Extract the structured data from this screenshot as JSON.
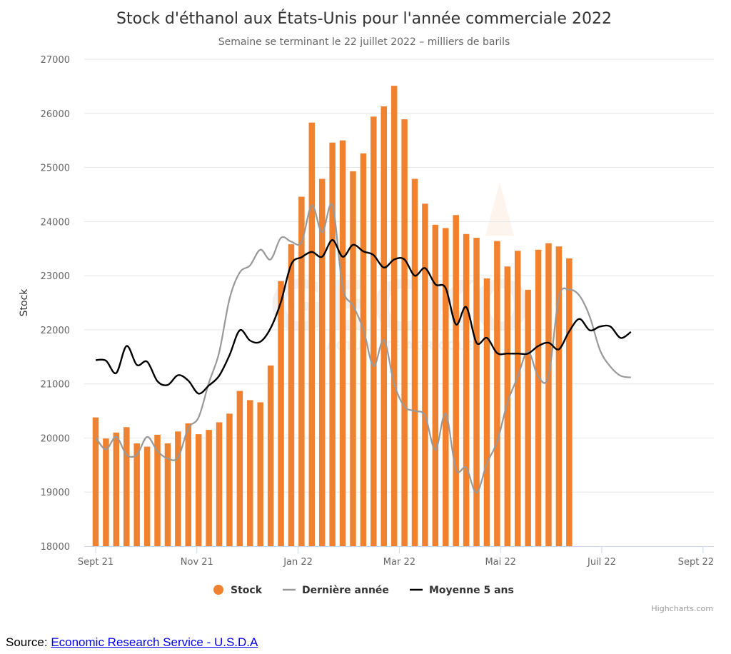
{
  "chart_data": {
    "type": "bar",
    "title": "Stock d'éthanol aux États-Unis pour l'année commerciale 2022",
    "subtitle": "Semaine se terminant le 22 juillet 2022 – milliers de barils",
    "ylabel": "Stock",
    "ylim": [
      18000,
      27000
    ],
    "yticks": [
      18000,
      19000,
      20000,
      21000,
      22000,
      23000,
      24000,
      25000,
      26000,
      27000
    ],
    "xticks": [
      "Sept 21",
      "Nov 21",
      "Jan 22",
      "Mar 22",
      "Mai 22",
      "Juil 22",
      "Sept 22"
    ],
    "weeks": 60,
    "grid": true,
    "legend_position": "bottom",
    "series": [
      {
        "name": "Stock",
        "type": "bar",
        "color": "#f0812f",
        "values": [
          20380,
          19990,
          20100,
          20200,
          19900,
          19840,
          20060,
          19900,
          20120,
          20270,
          20070,
          20150,
          20290,
          20450,
          20870,
          20700,
          20660,
          21340,
          22900,
          23580,
          24460,
          25830,
          24790,
          25460,
          25500,
          24930,
          25260,
          25940,
          26130,
          26510,
          25890,
          24790,
          24330,
          23940,
          23880,
          24120,
          23770,
          23700,
          22950,
          23640,
          23170,
          23460,
          22740,
          23480,
          23600,
          23540,
          23320
        ]
      },
      {
        "name": "Dernière année",
        "type": "line",
        "color": "#999999",
        "values": [
          20010,
          19790,
          20020,
          19690,
          19690,
          20020,
          19760,
          19620,
          19640,
          20180,
          20380,
          21020,
          21580,
          22570,
          23060,
          23190,
          23480,
          23300,
          23700,
          23630,
          23620,
          24300,
          23800,
          24300,
          22780,
          22450,
          22010,
          21330,
          21810,
          21000,
          20580,
          20500,
          20410,
          19780,
          20450,
          19420,
          19450,
          18990,
          19530,
          19930,
          20650,
          21130,
          21600,
          21130,
          21150,
          22600,
          22740,
          22630,
          22240,
          21620,
          21320,
          21150,
          21120
        ]
      },
      {
        "name": "Moyenne 5 ans",
        "type": "line",
        "color": "#000000",
        "values": [
          21440,
          21430,
          21200,
          21700,
          21350,
          21410,
          21050,
          20980,
          21160,
          21060,
          20820,
          20970,
          21150,
          21530,
          21990,
          21800,
          21780,
          22030,
          22520,
          23210,
          23340,
          23440,
          23350,
          23660,
          23350,
          23570,
          23450,
          23380,
          23150,
          23300,
          23300,
          23000,
          23140,
          22840,
          22770,
          22100,
          22420,
          21760,
          21850,
          21570,
          21560,
          21560,
          21560,
          21700,
          21760,
          21640,
          21970,
          22200,
          21990,
          22060,
          22060,
          21850,
          21960
        ]
      }
    ]
  },
  "credits": "Highcharts.com",
  "source": {
    "prefix": "Source: ",
    "link_text": "Economic Research Service - U.S.D.A"
  }
}
